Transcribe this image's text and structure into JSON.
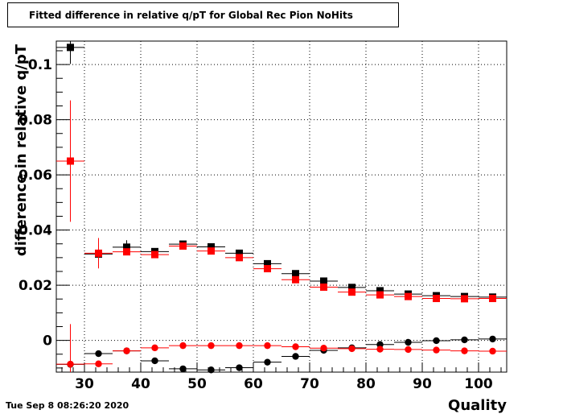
{
  "title": "Fitted difference in relative q/pT for Global Rec Pion NoHits",
  "timestamp": "Tue Sep  8 08:26:20 2020",
  "chart_data": {
    "type": "scatter",
    "title": "Fitted difference in relative q/pT for Global Rec Pion NoHits",
    "xlabel": "Quality",
    "ylabel": "difference in relative q/pT",
    "xlim": [
      25,
      105
    ],
    "ylim": [
      -0.0115,
      0.1085
    ],
    "x_ticks": [
      30,
      40,
      50,
      60,
      70,
      80,
      90,
      100
    ],
    "y_ticks": [
      0,
      0.02,
      0.04,
      0.06,
      0.08,
      0.1
    ],
    "x_tick_labels": [
      "30",
      "40",
      "50",
      "60",
      "70",
      "80",
      "90",
      "100"
    ],
    "y_tick_labels": [
      "0",
      "0.02",
      "0.04",
      "0.06",
      "0.08",
      "0.1"
    ],
    "grid": true,
    "bin_half_width": 2.5,
    "series": [
      {
        "marker": "square",
        "color": "#000000",
        "x": [
          27.5,
          32.5,
          37.5,
          42.5,
          47.5,
          52.5,
          57.5,
          62.5,
          67.5,
          72.5,
          77.5,
          82.5,
          87.5,
          92.5,
          97.5,
          102.5
        ],
        "y": [
          0.1062,
          0.0313,
          0.0338,
          0.0322,
          0.0349,
          0.0339,
          0.0316,
          0.0278,
          0.0242,
          0.0215,
          0.0192,
          0.018,
          0.0168,
          0.0162,
          0.0159,
          0.0157
        ],
        "err": [
          0.006,
          0.001,
          0.0025,
          0.0007,
          0.0009,
          0.0006,
          0.0006,
          0.0005,
          0.0006,
          0.0005,
          0.0004,
          0.0004,
          0.0004,
          0.0004,
          0.0004,
          0.0004
        ]
      },
      {
        "marker": "square",
        "color": "#ff0000",
        "x": [
          27.5,
          32.5,
          37.5,
          42.5,
          47.5,
          52.5,
          57.5,
          62.5,
          67.5,
          72.5,
          77.5,
          82.5,
          87.5,
          92.5,
          97.5,
          102.5
        ],
        "y": [
          0.065,
          0.0316,
          0.0321,
          0.0311,
          0.0342,
          0.0324,
          0.03,
          0.026,
          0.022,
          0.0193,
          0.0175,
          0.0165,
          0.0159,
          0.0152,
          0.0151,
          0.0152
        ],
        "err": [
          0.022,
          0.0055,
          0.001,
          0.0008,
          0.0009,
          0.0006,
          0.0005,
          0.0005,
          0.0005,
          0.0004,
          0.0004,
          0.0004,
          0.0004,
          0.0004,
          0.0004,
          0.0004
        ]
      },
      {
        "marker": "circle",
        "color": "#000000",
        "x": [
          27.5,
          32.5,
          37.5,
          42.5,
          47.5,
          52.5,
          57.5,
          62.5,
          67.5,
          72.5,
          77.5,
          82.5,
          87.5,
          92.5,
          97.5,
          102.5
        ],
        "y": [
          -0.0087,
          -0.0048,
          -0.0038,
          -0.0074,
          -0.0103,
          -0.0107,
          -0.0099,
          -0.0079,
          -0.0058,
          -0.0036,
          -0.0027,
          -0.0015,
          -0.0007,
          -0.0001,
          0.0002,
          0.0005
        ],
        "err": [
          0.0008,
          0.0008,
          0.0005,
          0.0004,
          0.0004,
          0.0004,
          0.0004,
          0.0004,
          0.0004,
          0.0003,
          0.0003,
          0.0003,
          0.0003,
          0.0003,
          0.0003,
          0.0003
        ]
      },
      {
        "marker": "circle",
        "color": "#ff0000",
        "x": [
          27.5,
          32.5,
          37.5,
          42.5,
          47.5,
          52.5,
          57.5,
          62.5,
          67.5,
          72.5,
          77.5,
          82.5,
          87.5,
          92.5,
          97.5,
          102.5
        ],
        "y": [
          -0.0086,
          -0.0085,
          -0.0038,
          -0.0027,
          -0.0019,
          -0.0019,
          -0.0019,
          -0.0019,
          -0.0023,
          -0.0028,
          -0.003,
          -0.0032,
          -0.0033,
          -0.0035,
          -0.0038,
          -0.0039
        ],
        "err": [
          0.0145,
          0.0009,
          0.0005,
          0.0004,
          0.0004,
          0.0004,
          0.0004,
          0.0004,
          0.0004,
          0.0004,
          0.0003,
          0.0003,
          0.0003,
          0.0003,
          0.0003,
          0.0003
        ]
      }
    ]
  }
}
